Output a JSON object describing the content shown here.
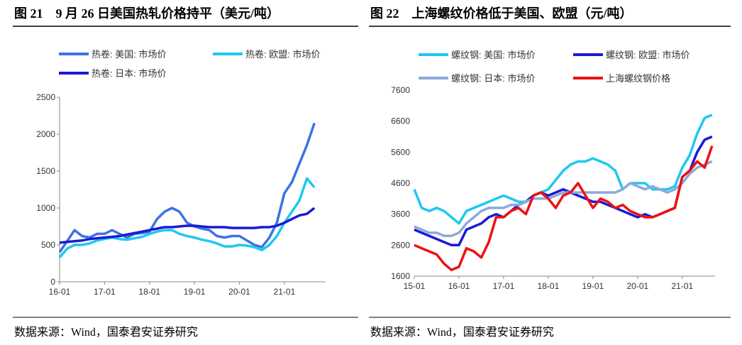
{
  "chart_data": [
    {
      "type": "line",
      "title": "图 21　9 月 26 日美国热轧价格持平（美元/吨）",
      "source": "数据来源：Wind，国泰君安证券研究",
      "x": [
        "16-01",
        "16-03",
        "16-05",
        "16-07",
        "16-09",
        "16-11",
        "17-01",
        "17-03",
        "17-05",
        "17-07",
        "17-09",
        "17-11",
        "18-01",
        "18-03",
        "18-05",
        "18-07",
        "18-09",
        "18-11",
        "19-01",
        "19-03",
        "19-05",
        "19-07",
        "19-09",
        "19-11",
        "20-01",
        "20-03",
        "20-05",
        "20-07",
        "20-09",
        "20-11",
        "21-01",
        "21-03",
        "21-05",
        "21-07",
        "21-09"
      ],
      "xticks": [
        "16-01",
        "17-01",
        "18-01",
        "19-01",
        "20-01",
        "21-01"
      ],
      "ylim": [
        0,
        2500
      ],
      "yticks": [
        0,
        500,
        1000,
        1500,
        2000,
        2500
      ],
      "series": [
        {
          "name": "热卷: 美国: 市场价",
          "color": "#3b73e3",
          "values": [
            400,
            550,
            700,
            620,
            600,
            650,
            650,
            700,
            650,
            600,
            650,
            660,
            680,
            850,
            950,
            1000,
            950,
            800,
            750,
            720,
            700,
            620,
            600,
            620,
            620,
            560,
            500,
            470,
            600,
            800,
            1200,
            1350,
            1600,
            1850,
            2150
          ]
        },
        {
          "name": "热卷: 欧盟: 市场价",
          "color": "#1ec8f0",
          "values": [
            330,
            450,
            500,
            500,
            520,
            560,
            580,
            600,
            580,
            570,
            590,
            610,
            650,
            680,
            700,
            700,
            650,
            620,
            600,
            570,
            550,
            520,
            480,
            480,
            500,
            490,
            470,
            430,
            500,
            620,
            800,
            950,
            1100,
            1400,
            1280
          ]
        },
        {
          "name": "热卷: 日本: 市场价",
          "color": "#1a1ad6",
          "values": [
            530,
            540,
            550,
            560,
            580,
            590,
            600,
            610,
            620,
            640,
            660,
            680,
            700,
            720,
            740,
            740,
            750,
            760,
            760,
            750,
            740,
            740,
            740,
            730,
            730,
            730,
            730,
            740,
            740,
            760,
            800,
            850,
            900,
            920,
            1000
          ]
        }
      ]
    },
    {
      "type": "line",
      "title": "图 22　上海螺纹价格低于美国、欧盟（元/吨）",
      "source": "数据来源：Wind，国泰君安证券研究",
      "x": [
        "15-01",
        "15-03",
        "15-05",
        "15-07",
        "15-09",
        "15-11",
        "16-01",
        "16-03",
        "16-05",
        "16-07",
        "16-09",
        "16-11",
        "17-01",
        "17-03",
        "17-05",
        "17-07",
        "17-09",
        "17-11",
        "18-01",
        "18-03",
        "18-05",
        "18-07",
        "18-09",
        "18-11",
        "19-01",
        "19-03",
        "19-05",
        "19-07",
        "19-09",
        "19-11",
        "20-01",
        "20-03",
        "20-05",
        "20-07",
        "20-09",
        "20-11",
        "21-01",
        "21-03",
        "21-05",
        "21-07",
        "21-09"
      ],
      "xticks": [
        "15-01",
        "16-01",
        "17-01",
        "18-01",
        "19-01",
        "20-01",
        "21-01"
      ],
      "ylim": [
        1600,
        7600
      ],
      "yticks": [
        1600,
        2600,
        3600,
        4600,
        5600,
        6600,
        7600
      ],
      "series": [
        {
          "name": "螺纹钢: 美国: 市场价",
          "color": "#1ec8f0",
          "values": [
            4400,
            3800,
            3700,
            3800,
            3700,
            3500,
            3300,
            3700,
            3800,
            3900,
            4000,
            4100,
            4200,
            4100,
            4000,
            4000,
            4200,
            4300,
            4400,
            4700,
            5000,
            5200,
            5300,
            5300,
            5400,
            5300,
            5200,
            5000,
            4400,
            4600,
            4600,
            4600,
            4400,
            4400,
            4400,
            4500,
            5100,
            5500,
            6200,
            6700,
            6800
          ]
        },
        {
          "name": "螺纹钢: 欧盟: 市场价",
          "color": "#1a1ad6",
          "values": [
            3100,
            3000,
            2900,
            2800,
            2700,
            2600,
            2600,
            3100,
            3200,
            3300,
            3500,
            3600,
            3500,
            3700,
            3900,
            4000,
            4200,
            4300,
            4200,
            4300,
            4400,
            4300,
            4200,
            4100,
            4000,
            4000,
            3900,
            3800,
            3700,
            3600,
            3500,
            3600,
            3500,
            3600,
            3700,
            3800,
            4800,
            5000,
            5600,
            6000,
            6100
          ]
        },
        {
          "name": "螺纹钢: 日本: 市场价",
          "color": "#8eaadb",
          "values": [
            3200,
            3100,
            3000,
            3000,
            2900,
            2900,
            3000,
            3300,
            3500,
            3700,
            3800,
            3800,
            3800,
            3900,
            3900,
            4000,
            4100,
            4100,
            4100,
            4200,
            4300,
            4300,
            4300,
            4300,
            4300,
            4300,
            4300,
            4300,
            4400,
            4600,
            4500,
            4400,
            4500,
            4400,
            4300,
            4400,
            4600,
            4900,
            5100,
            5200,
            5300
          ]
        },
        {
          "name": "上海螺纹钢价格",
          "color": "#ee1111",
          "values": [
            2600,
            2500,
            2400,
            2300,
            2000,
            1800,
            1900,
            2500,
            2400,
            2200,
            2700,
            3500,
            3500,
            3700,
            3800,
            3600,
            4200,
            4300,
            4100,
            3800,
            4200,
            4300,
            4600,
            4200,
            3800,
            4100,
            4000,
            3800,
            3900,
            3700,
            3600,
            3500,
            3500,
            3600,
            3700,
            3800,
            4800,
            5000,
            5300,
            5100,
            5800
          ]
        }
      ]
    }
  ]
}
